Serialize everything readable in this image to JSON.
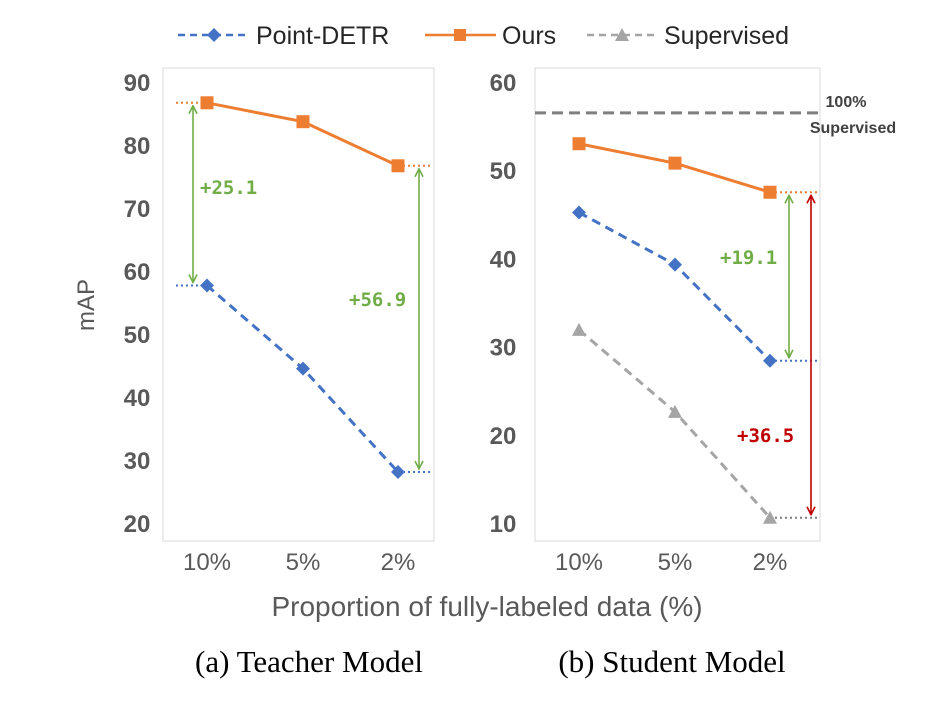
{
  "legend": [
    {
      "name": "Point-DETR",
      "color": "#4472C4",
      "marker": "diamond",
      "dash": "dashed"
    },
    {
      "name": "Ours",
      "color": "#ED7D31",
      "marker": "square",
      "dash": "solid"
    },
    {
      "name": "Supervised",
      "color": "#A5A5A5",
      "marker": "triangle",
      "dash": "dashed"
    }
  ],
  "shared_xlabel": "Proportion of fully-labeled data (%)",
  "chart_data": [
    {
      "type": "line",
      "panel": "a",
      "caption": "(a) Teacher Model",
      "ylabel": "mAP",
      "categories": [
        "10%",
        "5%",
        "2%"
      ],
      "ylim": [
        20,
        90
      ],
      "yticks": [
        20,
        30,
        40,
        50,
        60,
        70,
        80,
        90
      ],
      "grid": false,
      "series": [
        {
          "name": "Point-DETR",
          "values": [
            57.7,
            44.5,
            28.1
          ],
          "color": "#4472C4"
        },
        {
          "name": "Ours",
          "values": [
            86.7,
            83.7,
            76.7
          ],
          "color": "#ED7D31"
        }
      ],
      "annotations": [
        {
          "text": "+25.1",
          "color": "#70AD47"
        },
        {
          "text": "+56.9",
          "color": "#70AD47"
        }
      ]
    },
    {
      "type": "line",
      "panel": "b",
      "caption": "(b) Student Model",
      "ylabel": "",
      "categories": [
        "10%",
        "5%",
        "2%"
      ],
      "ylim": [
        10,
        60
      ],
      "yticks": [
        10,
        20,
        30,
        40,
        50,
        60
      ],
      "grid": false,
      "series": [
        {
          "name": "Point-DETR",
          "values": [
            45.2,
            39.3,
            28.4
          ],
          "color": "#4472C4"
        },
        {
          "name": "Ours",
          "values": [
            53.0,
            50.8,
            47.5
          ],
          "color": "#ED7D31"
        },
        {
          "name": "Supervised",
          "values": [
            31.9,
            22.6,
            10.6
          ],
          "color": "#A5A5A5"
        }
      ],
      "reference_line": {
        "value": 56.5,
        "label_line1": "100%",
        "label_line2": "Supervised",
        "color": "#7F7F7F"
      },
      "annotations": [
        {
          "text": "+19.1",
          "color": "#70AD47"
        },
        {
          "text": "+36.5",
          "color": "#C00000"
        }
      ]
    }
  ]
}
